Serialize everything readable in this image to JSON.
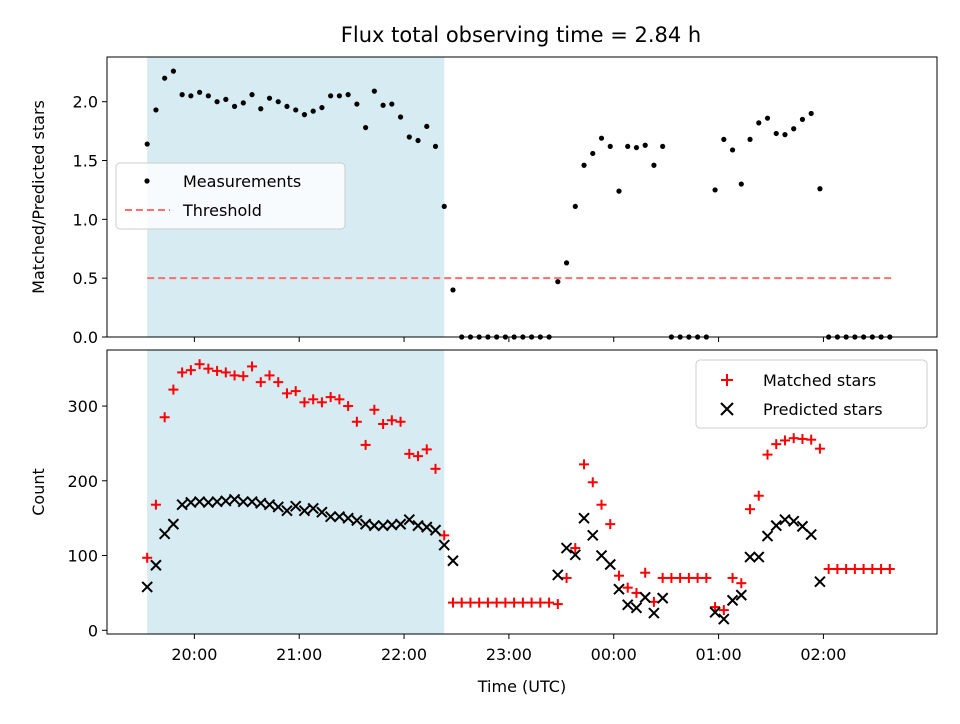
{
  "title": "Flux total observing time = 2.84 h",
  "colors": {
    "shade": "#add8e6",
    "matched": "#ff0000",
    "predicted": "#000000",
    "threshold": "#ff6f6f"
  },
  "chart_data": [
    {
      "type": "scatter",
      "ylabel": "Matched/Predicted stars",
      "ylim": [
        0,
        2.38
      ],
      "yticks": [
        "0.0",
        "0.5",
        "1.0",
        "1.5",
        "2.0"
      ],
      "ytick_values": [
        0,
        0.5,
        1.0,
        1.5,
        2.0
      ],
      "xlim": [
        "19:10",
        "03:05"
      ],
      "shaded_range": [
        "19:33",
        "22:23"
      ],
      "threshold": {
        "name": "Threshold",
        "value": 0.5,
        "x_range": [
          "19:33",
          "02:39"
        ]
      },
      "legend": {
        "position": "center-left",
        "entries": [
          "Measurements",
          "Threshold"
        ]
      },
      "series": [
        {
          "name": "Measurements",
          "x": [
            "19:33",
            "19:38",
            "19:43",
            "19:48",
            "19:53",
            "19:58",
            "20:03",
            "20:08",
            "20:13",
            "20:18",
            "20:23",
            "20:28",
            "20:33",
            "20:38",
            "20:43",
            "20:48",
            "20:53",
            "20:58",
            "21:03",
            "21:08",
            "21:13",
            "21:18",
            "21:23",
            "21:28",
            "21:33",
            "21:38",
            "21:43",
            "21:48",
            "21:53",
            "21:58",
            "22:03",
            "22:08",
            "22:13",
            "22:18",
            "22:23",
            "22:28",
            "22:33",
            "22:38",
            "22:43",
            "22:48",
            "22:53",
            "22:58",
            "23:03",
            "23:08",
            "23:13",
            "23:18",
            "23:23",
            "23:28",
            "23:33",
            "23:38",
            "23:43",
            "23:48",
            "23:53",
            "23:58",
            "00:03",
            "00:08",
            "00:13",
            "00:18",
            "00:23",
            "00:28",
            "00:33",
            "00:38",
            "00:43",
            "00:48",
            "00:53",
            "00:58",
            "01:03",
            "01:08",
            "01:13",
            "01:18",
            "01:23",
            "01:28",
            "01:33",
            "01:38",
            "01:43",
            "01:48",
            "01:53",
            "01:58",
            "02:03",
            "02:08",
            "02:13",
            "02:18",
            "02:23",
            "02:28",
            "02:33",
            "02:38"
          ],
          "y": [
            1.64,
            1.93,
            2.2,
            2.26,
            2.06,
            2.05,
            2.08,
            2.05,
            2.0,
            2.02,
            1.96,
            1.99,
            2.06,
            1.94,
            2.03,
            2.0,
            1.96,
            1.93,
            1.89,
            1.92,
            1.95,
            2.05,
            2.05,
            2.06,
            1.98,
            1.78,
            2.09,
            1.97,
            1.98,
            1.87,
            1.7,
            1.67,
            1.79,
            1.62,
            1.11,
            0.4,
            0,
            0,
            0,
            0,
            0,
            0,
            0,
            0,
            0,
            0,
            0,
            0.47,
            0.63,
            1.11,
            1.46,
            1.56,
            1.69,
            1.62,
            1.24,
            1.62,
            1.61,
            1.63,
            1.46,
            1.62,
            0,
            0,
            0,
            0,
            0,
            1.25,
            1.68,
            1.59,
            1.3,
            1.68,
            1.82,
            1.86,
            1.73,
            1.72,
            1.77,
            1.85,
            1.9,
            1.26,
            0,
            0,
            0,
            0,
            0,
            0,
            0,
            0
          ]
        }
      ]
    },
    {
      "type": "scatter",
      "ylabel": "Count",
      "xlabel": "Time (UTC)",
      "ylim": [
        -5,
        375
      ],
      "yticks": [
        "0",
        "100",
        "200",
        "300"
      ],
      "ytick_values": [
        0,
        100,
        200,
        300
      ],
      "xlim": [
        "19:10",
        "03:05"
      ],
      "xticks": [
        "20:00",
        "21:00",
        "22:00",
        "23:00",
        "00:00",
        "01:00",
        "02:00"
      ],
      "xtick_values": [
        "20:00",
        "21:00",
        "22:00",
        "23:00",
        "00:00",
        "01:00",
        "02:00"
      ],
      "shaded_range": [
        "19:33",
        "22:23"
      ],
      "legend": {
        "position": "upper-right",
        "entries": [
          "Matched stars",
          "Predicted stars"
        ]
      },
      "x": [
        "19:33",
        "19:38",
        "19:43",
        "19:48",
        "19:53",
        "19:58",
        "20:03",
        "20:08",
        "20:13",
        "20:18",
        "20:23",
        "20:28",
        "20:33",
        "20:38",
        "20:43",
        "20:48",
        "20:53",
        "20:58",
        "21:03",
        "21:08",
        "21:13",
        "21:18",
        "21:23",
        "21:28",
        "21:33",
        "21:38",
        "21:43",
        "21:48",
        "21:53",
        "21:58",
        "22:03",
        "22:08",
        "22:13",
        "22:18",
        "22:23",
        "22:28",
        "22:33",
        "22:38",
        "22:43",
        "22:48",
        "22:53",
        "22:58",
        "23:03",
        "23:08",
        "23:13",
        "23:18",
        "23:23",
        "23:28",
        "23:33",
        "23:38",
        "23:43",
        "23:48",
        "23:53",
        "23:58",
        "00:03",
        "00:08",
        "00:13",
        "00:18",
        "00:23",
        "00:28",
        "00:33",
        "00:38",
        "00:43",
        "00:48",
        "00:53",
        "00:58",
        "01:03",
        "01:08",
        "01:13",
        "01:18",
        "01:23",
        "01:28",
        "01:33",
        "01:38",
        "01:43",
        "01:48",
        "01:53",
        "01:58",
        "02:03",
        "02:08",
        "02:13",
        "02:18",
        "02:23",
        "02:28",
        "02:33",
        "02:38"
      ],
      "series": [
        {
          "name": "Matched stars",
          "values": [
            97,
            168,
            285,
            322,
            345,
            348,
            356,
            350,
            347,
            345,
            341,
            340,
            353,
            332,
            341,
            332,
            317,
            320,
            305,
            309,
            305,
            312,
            309,
            300,
            279,
            248,
            295,
            276,
            281,
            279,
            236,
            233,
            242,
            216,
            127,
            37,
            37,
            37,
            37,
            37,
            37,
            37,
            37,
            37,
            37,
            37,
            37,
            35,
            70,
            110,
            222,
            198,
            168,
            142,
            73,
            57,
            50,
            77,
            38,
            70,
            70,
            70,
            70,
            70,
            70,
            31,
            27,
            70,
            63,
            162,
            180,
            235,
            249,
            254,
            257,
            256,
            255,
            243,
            82,
            82,
            82,
            82,
            82,
            82,
            82,
            82
          ],
          "marker": "+"
        },
        {
          "name": "Predicted stars",
          "values": [
            58,
            87,
            129,
            142,
            168,
            171,
            172,
            171,
            172,
            173,
            175,
            172,
            172,
            170,
            168,
            165,
            160,
            166,
            160,
            163,
            158,
            152,
            152,
            150,
            147,
            142,
            140,
            140,
            141,
            142,
            148,
            140,
            138,
            134,
            114,
            93,
            null,
            null,
            null,
            null,
            null,
            null,
            null,
            null,
            null,
            null,
            null,
            74,
            110,
            101,
            150,
            127,
            100,
            88,
            55,
            34,
            30,
            44,
            23,
            43,
            null,
            null,
            null,
            null,
            null,
            24,
            15,
            40,
            47,
            98,
            98,
            126,
            140,
            148,
            146,
            139,
            128,
            65,
            null,
            null,
            null,
            null,
            null,
            null,
            null,
            null
          ],
          "marker": "x"
        }
      ]
    }
  ]
}
